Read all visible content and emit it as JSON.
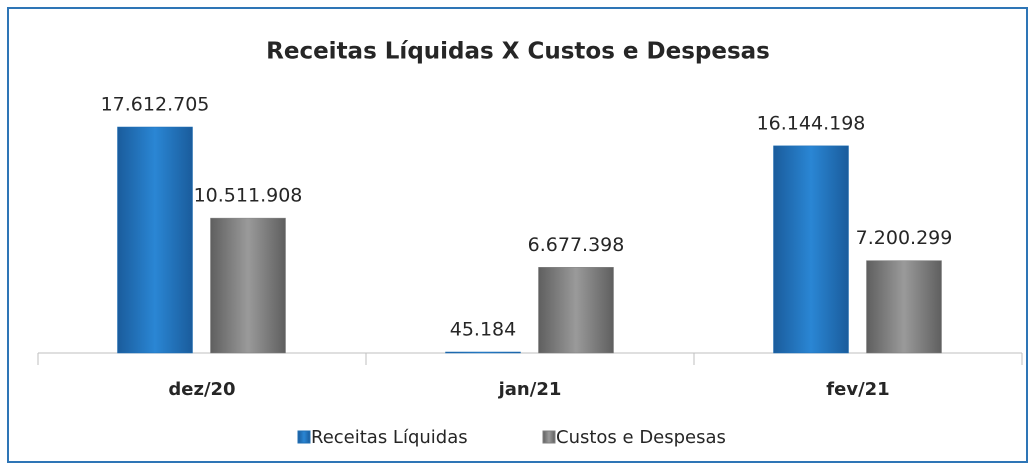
{
  "chart_data": {
    "type": "bar",
    "title": "Receitas Líquidas  X Custos e Despesas",
    "categories": [
      "dez/20",
      "jan/21",
      "fev/21"
    ],
    "series": [
      {
        "name": "Receitas Líquidas",
        "color": "#1f6fb5",
        "values": [
          17612705,
          45184,
          16144198
        ],
        "value_labels": [
          "17.612.705",
          "45.184",
          "16.144.198"
        ]
      },
      {
        "name": "Custos e Despesas",
        "color": "#7f7f7f",
        "values": [
          10511908,
          6677398,
          7200299
        ],
        "value_labels": [
          "10.511.908",
          "6.677.398",
          "7.200.299"
        ]
      }
    ],
    "legend": "bottom"
  }
}
